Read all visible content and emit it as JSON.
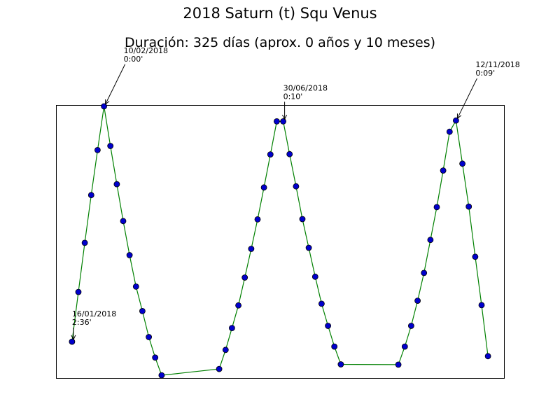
{
  "chart_data": {
    "type": "line",
    "title": "2018 Saturn (t) Squ Venus",
    "subtitle": "Duración: 325 días (aprox. 0 años y 10 meses)",
    "xlabel": "",
    "ylabel": "",
    "grid": false,
    "x_ticks_visible": false,
    "y_ticks_visible": false,
    "line_color": "#008000",
    "marker_color": "#0000cc",
    "marker_edge_color": "#000000",
    "xlim": [
      -2.5,
      67.5
    ],
    "ylim": [
      0,
      100
    ],
    "series": [
      {
        "x": [
          0,
          1,
          2,
          3,
          4,
          5,
          6,
          7,
          8,
          9,
          10,
          11,
          12,
          13,
          14,
          23,
          24,
          25,
          26,
          27,
          28,
          29,
          30,
          31,
          32,
          33,
          34,
          35,
          36,
          37,
          38,
          39,
          40,
          41,
          42,
          51,
          52,
          53,
          54,
          55,
          56,
          57,
          58,
          59,
          60,
          61,
          62,
          63,
          64,
          65
        ],
        "y": [
          13.3,
          31.5,
          49.5,
          67,
          83.5,
          99.5,
          85,
          71,
          57.5,
          45,
          33.5,
          24.5,
          15,
          7.5,
          1,
          3.3,
          10.3,
          18.3,
          26.6,
          36.8,
          47.3,
          58.1,
          69.8,
          81.9,
          94,
          94,
          82,
          70.2,
          58.2,
          47.7,
          37.1,
          27.2,
          19.1,
          11.5,
          5,
          4.9,
          11.5,
          19.1,
          28.3,
          38.5,
          50.6,
          62.6,
          76,
          90.2,
          94.3,
          78.5,
          62.8,
          44.4,
          26.7,
          8
        ]
      }
    ],
    "annotations": [
      {
        "line1": "16/01/2018",
        "line2": "2:36'",
        "point_index": 0
      },
      {
        "line1": "10/02/2018",
        "line2": "0:00'",
        "point_index": 5
      },
      {
        "line1": "30/06/2018",
        "line2": "0:10'",
        "point_index": 25
      },
      {
        "line1": "12/11/2018",
        "line2": "0:09'",
        "point_index": 44
      }
    ]
  }
}
